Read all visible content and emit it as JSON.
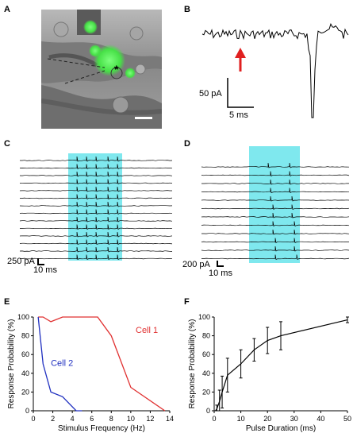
{
  "panels": {
    "a": {
      "label": "A",
      "marker": "*"
    },
    "b": {
      "label": "B",
      "scale_y": "50 pA",
      "scale_x": "5 ms"
    },
    "c": {
      "label": "C",
      "scale_y": "250 pA",
      "scale_x": "10 ms",
      "n_traces": 14
    },
    "d": {
      "label": "D",
      "scale_y": "200 pA",
      "scale_x": "10 ms",
      "n_traces": 12
    },
    "e": {
      "label": "E"
    },
    "f": {
      "label": "F"
    }
  },
  "colors": {
    "stim_box": "#7fe8ee",
    "cell1": "#e03030",
    "cell2": "#2030c0",
    "arrow": "#e02020",
    "fluorescence": "#55e855"
  },
  "chart_data": [
    {
      "type": "line",
      "panel": "E",
      "xlabel": "Stimulus Frequency (Hz)",
      "ylabel": "Response Probability (%)",
      "xlim": [
        0,
        14
      ],
      "ylim": [
        0,
        100
      ],
      "xticks": [
        0,
        2,
        4,
        6,
        8,
        10,
        12,
        14
      ],
      "yticks": [
        0,
        20,
        40,
        60,
        80,
        100
      ],
      "series": [
        {
          "name": "Cell 1",
          "color": "#e03030",
          "x": [
            0.5,
            1,
            1.8,
            3,
            4,
            6.6,
            8,
            10,
            13.5
          ],
          "y": [
            100,
            100,
            95,
            100,
            100,
            100,
            80,
            25,
            0
          ]
        },
        {
          "name": "Cell 2",
          "color": "#2030c0",
          "x": [
            0.5,
            1,
            1.8,
            3,
            4.4,
            5
          ],
          "y": [
            100,
            50,
            20,
            15,
            0,
            0
          ]
        }
      ]
    },
    {
      "type": "line",
      "panel": "F",
      "xlabel": "Pulse Duration (ms)",
      "ylabel": "Response Probability (%)",
      "xlim": [
        0,
        50
      ],
      "ylim": [
        0,
        100
      ],
      "xticks": [
        0,
        10,
        20,
        30,
        40,
        50
      ],
      "yticks": [
        0,
        20,
        40,
        60,
        80,
        100
      ],
      "series": [
        {
          "x": [
            0.5,
            1,
            2,
            3,
            5,
            10,
            15,
            20,
            25,
            50
          ],
          "y": [
            0,
            2,
            10,
            20,
            38,
            50,
            65,
            75,
            80,
            97
          ],
          "err": [
            0,
            4,
            12,
            17,
            18,
            15,
            12,
            14,
            15,
            3
          ]
        }
      ]
    }
  ]
}
